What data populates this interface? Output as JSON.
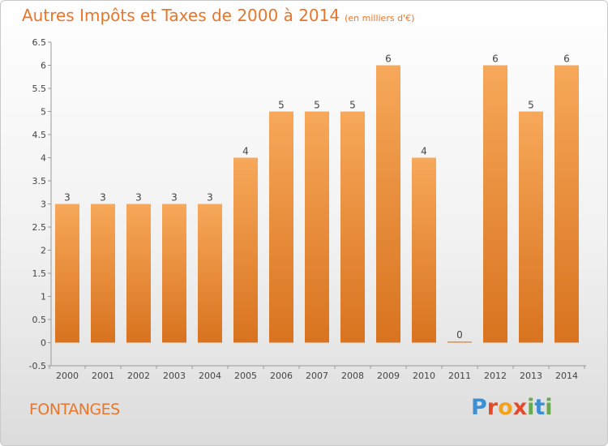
{
  "header": {
    "title": "Autres Impôts et Taxes de 2000 à 2014",
    "unit": "(en milliers d'€)"
  },
  "commune": "FONTANGES",
  "logo": {
    "letters": [
      "P",
      "r",
      "o",
      "x",
      "i",
      "t",
      "i"
    ],
    "colors": [
      "#3d8fd4",
      "#e34a2a",
      "#f2a21f",
      "#e34a2a",
      "#6aa84f",
      "#3d8fd4",
      "#6aa84f"
    ]
  },
  "colors": {
    "bar_top": "#f7a85a",
    "bar_bottom": "#d8731f",
    "accent": "#e8762a"
  },
  "chart_data": {
    "type": "bar",
    "categories": [
      "2000",
      "2001",
      "2002",
      "2003",
      "2004",
      "2005",
      "2006",
      "2007",
      "2008",
      "2009",
      "2010",
      "2011",
      "2012",
      "2013",
      "2014"
    ],
    "values": [
      3,
      3,
      3,
      3,
      3,
      4,
      5,
      5,
      5,
      6,
      4,
      0,
      6,
      5,
      6
    ],
    "data_labels": [
      "3",
      "3",
      "3",
      "3",
      "3",
      "4",
      "5",
      "5",
      "5",
      "6",
      "4",
      "0",
      "6",
      "5",
      "6"
    ],
    "y_ticks": [
      "-0.5",
      "0",
      "0.5",
      "1",
      "1.5",
      "2",
      "2.5",
      "3",
      "3.5",
      "4",
      "4.5",
      "5",
      "5.5",
      "6",
      "6.5"
    ],
    "ylim": [
      -0.5,
      6.5
    ],
    "grid": false,
    "legend": "none"
  }
}
